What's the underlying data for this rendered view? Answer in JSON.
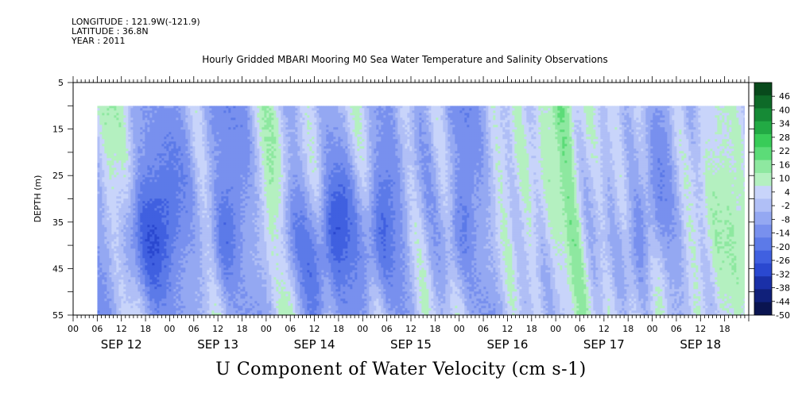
{
  "header": {
    "longitude_label": "LONGITUDE : 121.9W(-121.9)",
    "latitude_label": "LATITUDE : 36.8N",
    "year_label": "YEAR : 2011",
    "title": "Hourly Gridded MBARI Mooring M0 Sea Water Temperature and Salinity Observations"
  },
  "chart_data": {
    "type": "heatmap",
    "title": "Hourly Gridded MBARI Mooring M0 Sea Water Temperature and Salinity Observations",
    "xlabel": "U Component of Water Velocity (cm s-1)",
    "ylabel": "DEPTH (m)",
    "ylim": [
      5,
      55
    ],
    "y_reversed": true,
    "y_ticks": [
      5,
      15,
      25,
      35,
      45,
      55
    ],
    "x_hour_ticks": [
      "00",
      "06",
      "12",
      "18",
      "00",
      "06",
      "12",
      "18",
      "00",
      "06",
      "12",
      "18",
      "00",
      "06",
      "12",
      "18",
      "00",
      "06",
      "12",
      "18",
      "00",
      "06",
      "12",
      "18",
      "00",
      "06",
      "12",
      "18"
    ],
    "x_day_labels": [
      "SEP 12",
      "SEP 13",
      "SEP 14",
      "SEP 15",
      "SEP 16",
      "SEP 17",
      "SEP 18"
    ],
    "data_extent": {
      "x_start": "SEP 12 06:00",
      "x_end": "SEP 18 23:00",
      "depth_top": 10,
      "depth_bottom": 55
    },
    "colorbar": {
      "levels": [
        "46",
        "40",
        "34",
        "28",
        "22",
        "16",
        "10",
        "4",
        "-2",
        "-8",
        "-14",
        "-20",
        "-26",
        "-32",
        "-38",
        "-44",
        "-50"
      ],
      "min": -50,
      "max": 52,
      "colors": [
        "#0a1450",
        "#10207a",
        "#1a30a8",
        "#2a48d0",
        "#4060e0",
        "#5c7ae8",
        "#7890ee",
        "#94a8f2",
        "#b0bff6",
        "#c8d4fa",
        "#b4f0c0",
        "#8ee8a0",
        "#5cdc78",
        "#38cc58",
        "#22aa44",
        "#168a36",
        "#0e6a28",
        "#084a1c"
      ]
    },
    "grid": false
  }
}
